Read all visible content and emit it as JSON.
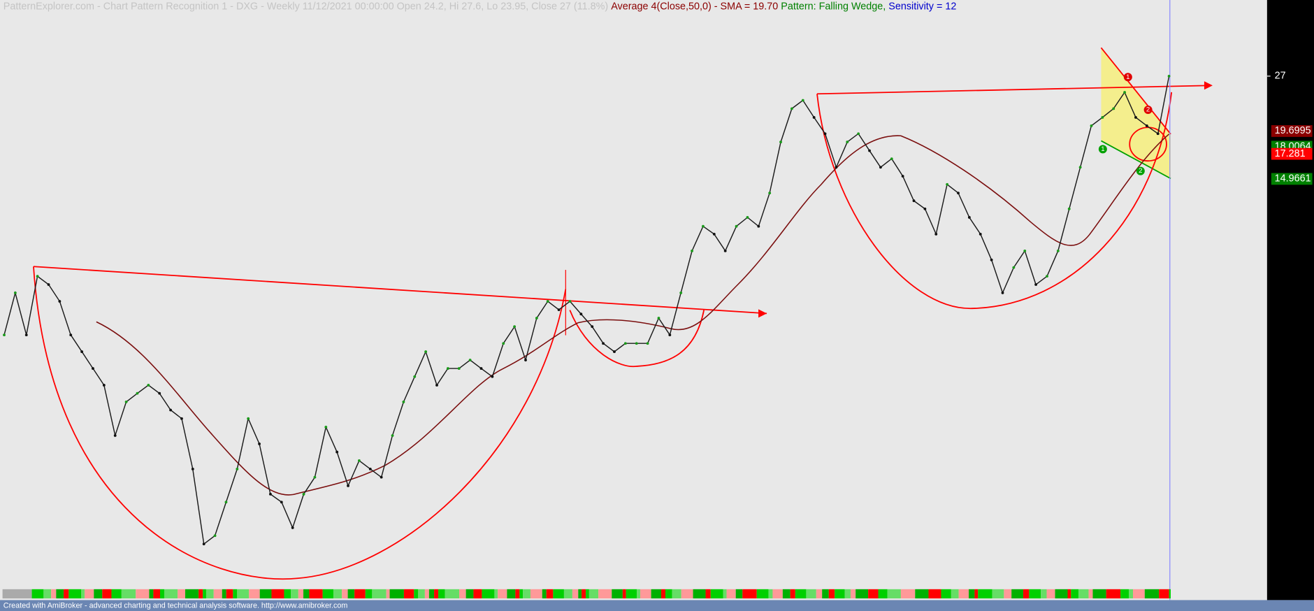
{
  "chart_data": {
    "type": "line",
    "title": "PatternExplorer.com - Chart Pattern Recognition 1  - DXG - Weekly 11/12/2021 00:00:00 Open 24.2, Hi 27.6, Lo 23.95, Close 27 (11.8%)",
    "average": "Average 4(Close,50,0) - SMA = 19.70",
    "pattern": "Pattern: Falling Wedge,",
    "sensitivity": "Sensitivity = 12",
    "color": "#1a1a1a",
    "log_scale": true,
    "grid": false,
    "ylim": [
      1.44,
      41.8
    ],
    "yticks": [
      27,
      19.6995,
      18.0064,
      17.281,
      14.9661
    ],
    "ytick_colors": [
      "#000000",
      "#8b0000",
      "#008000",
      "#ff0000",
      "#008000"
    ],
    "values": [
      6.11,
      7.78,
      6.11,
      8.56,
      8.16,
      7.41,
      6.11,
      5.55,
      5.04,
      4.58,
      3.43,
      4.16,
      4.37,
      4.58,
      4.37,
      3.97,
      3.78,
      2.83,
      1.84,
      1.93,
      2.34,
      2.83,
      3.78,
      3.27,
      2.45,
      2.34,
      2.02,
      2.45,
      2.7,
      3.6,
      3.12,
      2.57,
      2.97,
      2.83,
      2.7,
      3.43,
      4.16,
      4.81,
      5.55,
      4.58,
      5.04,
      5.04,
      5.29,
      5.04,
      4.81,
      5.82,
      6.41,
      5.29,
      6.73,
      7.41,
      7.06,
      7.41,
      6.89,
      6.41,
      5.82,
      5.55,
      5.82,
      5.82,
      5.82,
      6.73,
      6.11,
      7.78,
      9.9,
      11.4,
      10.9,
      9.9,
      11.4,
      12.0,
      11.4,
      13.8,
      18.5,
      22.4,
      23.5,
      21.3,
      19.4,
      16.0,
      18.5,
      19.4,
      17.6,
      16.0,
      16.8,
      15.2,
      13.2,
      12.6,
      10.9,
      14.5,
      13.8,
      12.0,
      10.9,
      9.4,
      7.78,
      9.0,
      9.9,
      8.16,
      8.56,
      9.9,
      12.6,
      16.0,
      20.3,
      21.3,
      22.4,
      24.6,
      21.3,
      20.3,
      19.4,
      27
    ],
    "annotations": [
      "1",
      "2",
      "1",
      "2"
    ],
    "footer": "Created with AmiBroker - advanced charting and technical analysis software. http://www.amibroker.com"
  }
}
